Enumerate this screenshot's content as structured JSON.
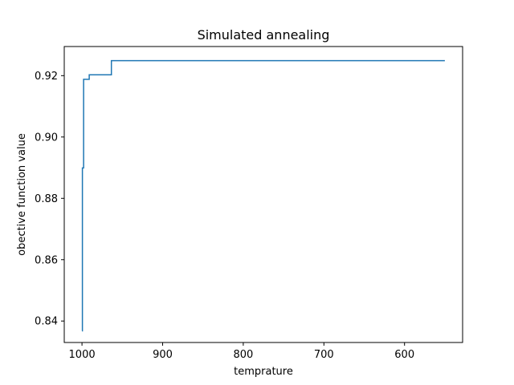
{
  "chart_data": {
    "type": "line",
    "title": "Simulated annealing",
    "xlabel": "temprature",
    "ylabel": "obective function value",
    "x_inverted": true,
    "xlim": [
      1022,
      528
    ],
    "ylim": [
      0.833,
      0.9295
    ],
    "x_ticks": [
      1000,
      900,
      800,
      700,
      600
    ],
    "y_ticks": [
      0.84,
      0.86,
      0.88,
      0.9,
      0.92
    ],
    "y_tick_labels": [
      "0.84",
      "0.86",
      "0.88",
      "0.90",
      "0.92"
    ],
    "grid": false,
    "series": [
      {
        "color": "#1f77b4",
        "step": true,
        "x": [
          1000,
          999.5,
          998,
          991,
          963.5,
          550
        ],
        "y": [
          0.8368,
          0.8899,
          0.9188,
          0.9203,
          0.9249,
          0.9249
        ]
      }
    ]
  }
}
